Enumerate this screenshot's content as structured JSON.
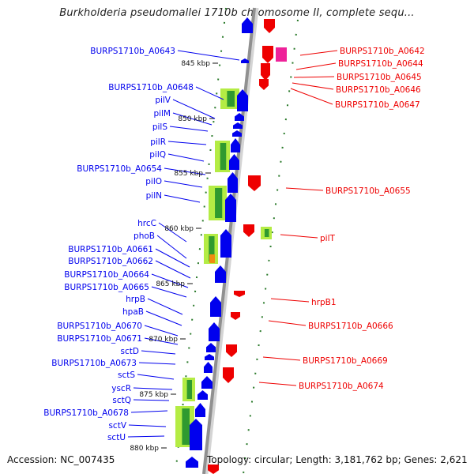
{
  "title": "Burkholderia pseudomallei 1710b chromosome II, complete sequ...",
  "accession": "Accession: NC_007435",
  "topology": "Topology: circular; Length: 3,181,762 bp; Genes: 2,621",
  "colors": {
    "forward": "#0000ee",
    "reverse": "#ee0000",
    "backbone": "#909090",
    "tick": "#2a7a2a",
    "pink": "#ee2299",
    "orange": "#f08c10"
  },
  "scale_ticks": [
    "845 kbp",
    "850 kbp",
    "855 kbp",
    "860 kbp",
    "865 kbp",
    "870 kbp",
    "875 kbp",
    "880 kbp"
  ],
  "left_labels": [
    "BURPS1710b_A0643",
    "BURPS1710b_A0648",
    "pilV",
    "pilM",
    "pilS",
    "pilR",
    "pilQ",
    "BURPS1710b_A0654",
    "pilO",
    "pilN",
    "hrcC",
    "phoB",
    "BURPS1710b_A0661",
    "BURPS1710b_A0662",
    "BURPS1710b_A0664",
    "BURPS1710b_A0665",
    "hrpB",
    "hpaB",
    "BURPS1710b_A0670",
    "BURPS1710b_A0671",
    "sctD",
    "BURPS1710b_A0673",
    "sctS",
    "yscR",
    "sctQ",
    "BURPS1710b_A0678",
    "sctV",
    "sctU"
  ],
  "right_labels": [
    "BURPS1710b_A0642",
    "BURPS1710b_A0644",
    "BURPS1710b_A0645",
    "BURPS1710b_A0646",
    "BURPS1710b_A0647",
    "BURPS1710b_A0655",
    "pilT",
    "hrpB1",
    "BURPS1710b_A0666",
    "BURPS1710b_A0669",
    "BURPS1710b_A0674"
  ]
}
